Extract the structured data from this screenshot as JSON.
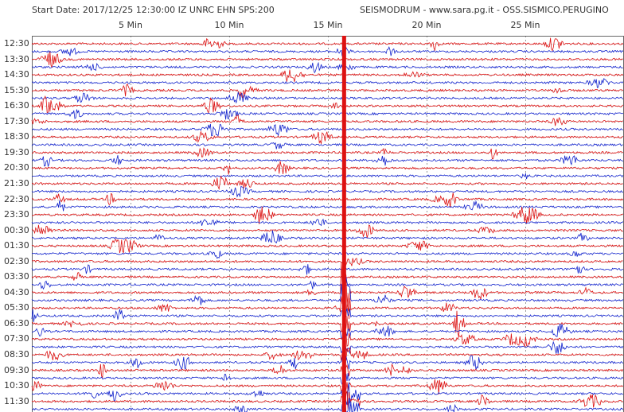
{
  "header": {
    "left": "Start Date: 2017/12/25 12:30:00 IZ UNRC    EHN   SPS:200",
    "right": "SEISMODRUM - www.sara.pg.it - OSS.SISMICO.PERUGINO"
  },
  "colors": {
    "trace_a": "#dd1111",
    "trace_b": "#1122cc",
    "grid": "#555555",
    "background": "#ffffff"
  },
  "chart_data": {
    "type": "line",
    "subtype": "helicorder",
    "title": "",
    "xlabel": "",
    "ylabel": "",
    "x_ticks": [
      "5 Min",
      "10 Min",
      "15 Min",
      "20 Min",
      "25 Min"
    ],
    "x_tick_values": [
      5,
      10,
      15,
      20,
      25
    ],
    "xlim": [
      0,
      30
    ],
    "row_minutes": 30,
    "traces_per_row": 2,
    "y_labels": [
      "12:30",
      "13:30",
      "14:30",
      "15:30",
      "16:30",
      "17:30",
      "18:30",
      "19:30",
      "20:30",
      "21:30",
      "22:30",
      "23:30",
      "00:30",
      "01:30",
      "02:30",
      "03:30",
      "04:30",
      "05:30",
      "06:30",
      "07:30",
      "08:30",
      "09:30",
      "10:30",
      "11:30"
    ],
    "grid": true,
    "notable_event": {
      "description": "large earthquake",
      "start_row": "04:30",
      "start_minute": 15.8
    }
  }
}
